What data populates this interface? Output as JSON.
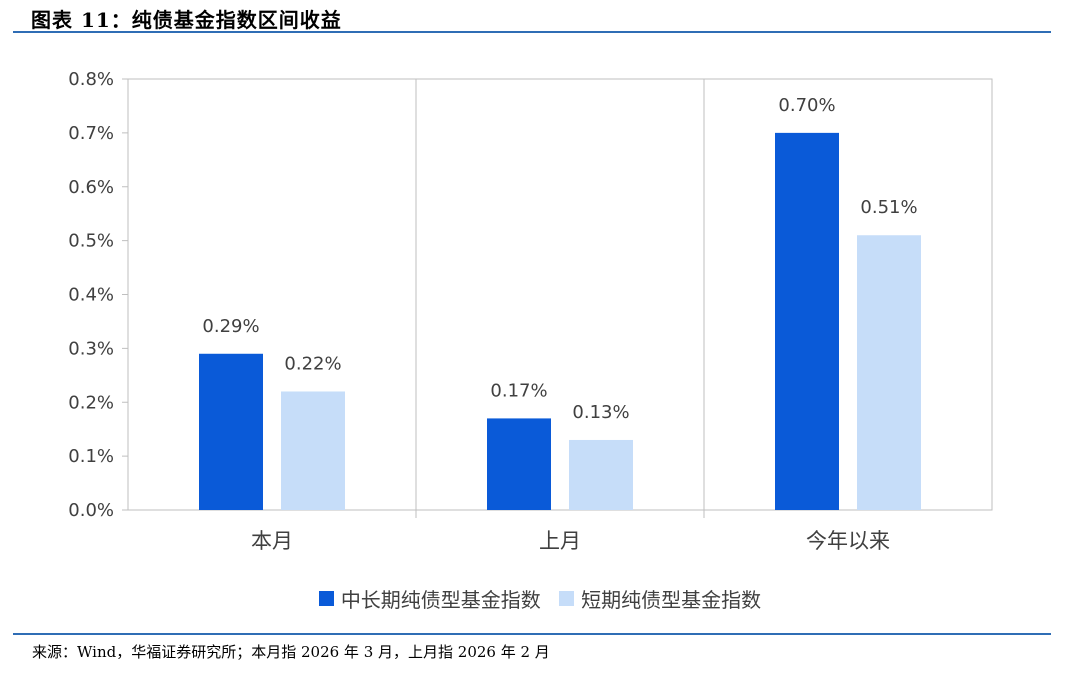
{
  "figure_title": "图表 11：纯债基金指数区间收益",
  "source_note": "来源：Wind，华福证券研究所；本月指 2026 年 3 月，上月指 2026 年 2 月",
  "colors": {
    "series1": "#0a5ad8",
    "series2": "#c6ddf9",
    "rule": "#2f6db5",
    "axis": "#bfbfbf"
  },
  "chart_data": {
    "type": "bar",
    "title": "",
    "xlabel": "",
    "ylabel": "",
    "categories": [
      "本月",
      "上月",
      "今年以来"
    ],
    "series": [
      {
        "name": "中长期纯债型基金指数",
        "values": [
          0.29,
          0.17,
          0.7
        ],
        "labels": [
          "0.29%",
          "0.17%",
          "0.70%"
        ]
      },
      {
        "name": "短期纯债型基金指数",
        "values": [
          0.22,
          0.13,
          0.51
        ],
        "labels": [
          "0.22%",
          "0.13%",
          "0.51%"
        ]
      }
    ],
    "ylim": [
      0,
      0.8
    ],
    "yticks": [
      0,
      0.1,
      0.2,
      0.3,
      0.4,
      0.5,
      0.6,
      0.7,
      0.8
    ],
    "ytick_labels": [
      "0.0%",
      "0.1%",
      "0.2%",
      "0.3%",
      "0.4%",
      "0.5%",
      "0.6%",
      "0.7%",
      "0.8%"
    ],
    "grid": false,
    "category_separators": true,
    "legend_position": "bottom"
  }
}
